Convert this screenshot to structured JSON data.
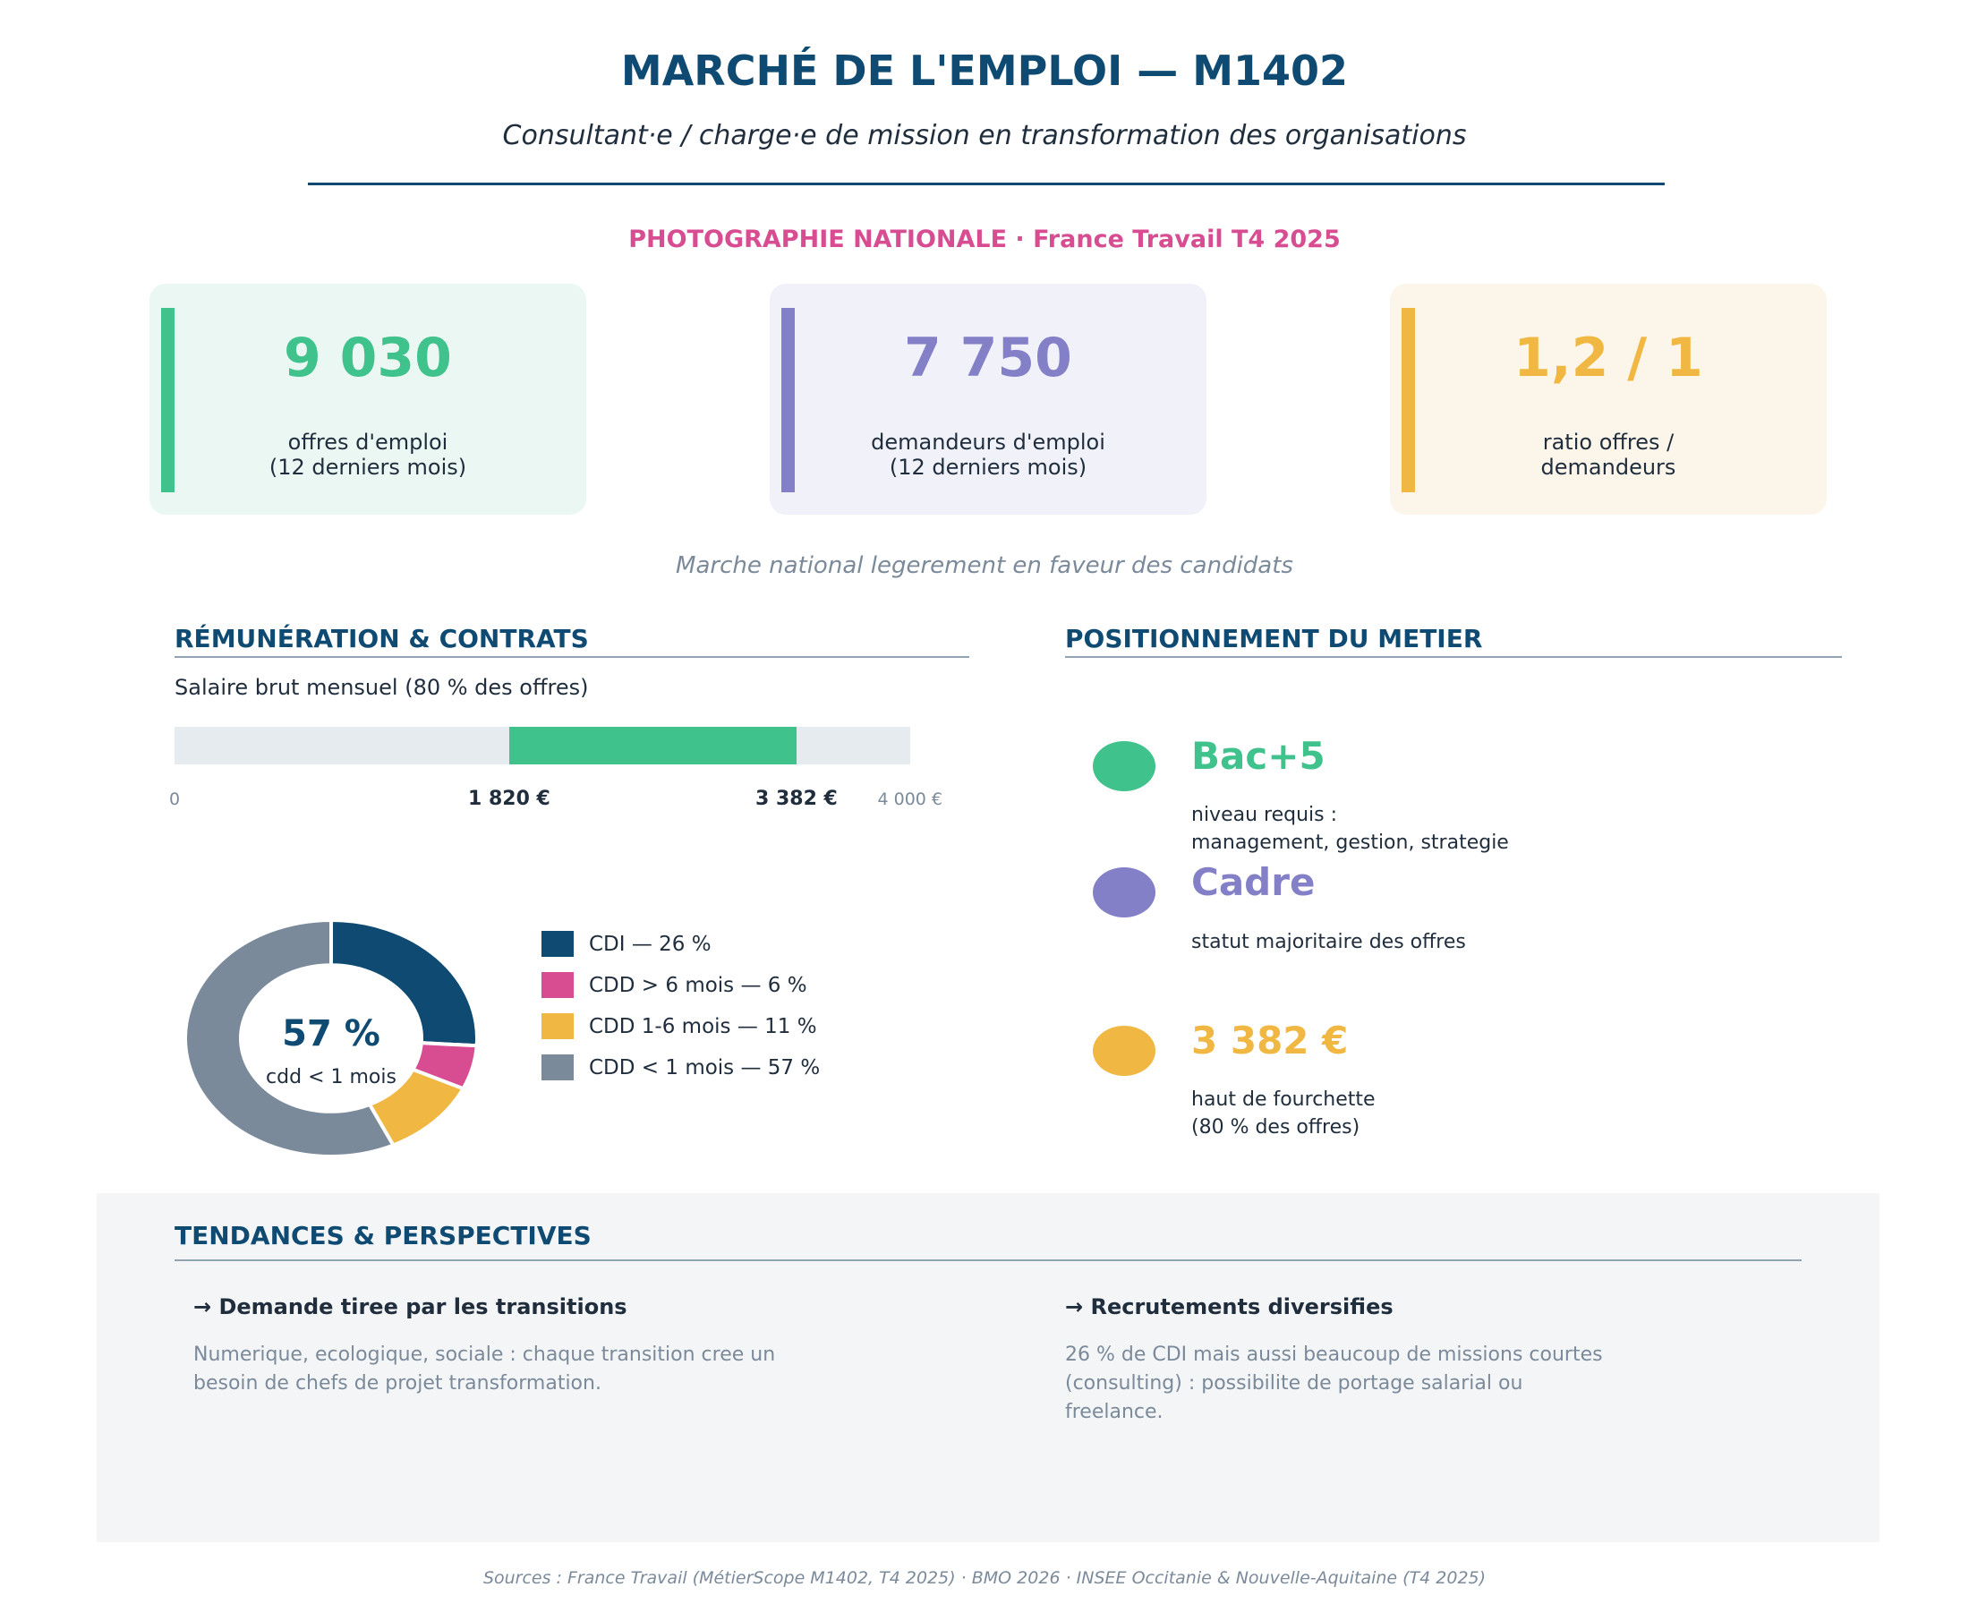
{
  "header": {
    "title": "MARCHÉ DE L'EMPLOI — M1402",
    "subtitle": "Consultant·e / charge·e de mission en transformation des organisations",
    "section_label": "PHOTOGRAPHIE NATIONALE  ·  France Travail T4 2025"
  },
  "kpis": [
    {
      "value": "9 030",
      "label_line1": "offres d'emploi",
      "label_line2": "(12 derniers mois)",
      "color": "#3fc28c",
      "bg": "#ebf7f2"
    },
    {
      "value": "7 750",
      "label_line1": "demandeurs d'emploi",
      "label_line2": "(12 derniers mois)",
      "color": "#8380c8",
      "bg": "#f0f1f9"
    },
    {
      "value": "1,2 / 1",
      "label_line1": "ratio offres /",
      "label_line2": "demandeurs",
      "color": "#f0b842",
      "bg": "#fcf6ea"
    }
  ],
  "national_note": "Marche national legerement en faveur des candidats",
  "remuneration": {
    "title": "RÉMUNÉRATION & CONTRATS",
    "salary_label": "Salaire brut mensuel (80 % des offres)",
    "salary_min_value": 1820,
    "salary_max_value": 3382,
    "scale_max_value": 4000,
    "tick_zero": "0",
    "tick_min": "1 820 €",
    "tick_max": "3 382 €",
    "tick_scale_max": "4 000 €",
    "fill_color": "#3fc28c",
    "donut_center_value": "57 %",
    "donut_center_label": "cdd < 1 mois",
    "contracts": [
      {
        "label": "CDI — 26 %",
        "percent": 26,
        "color": "#0f4a72"
      },
      {
        "label": "CDD > 6 mois — 6 %",
        "percent": 6,
        "color": "#d84d91"
      },
      {
        "label": "CDD 1-6 mois — 11 %",
        "percent": 11,
        "color": "#f0b842"
      },
      {
        "label": "CDD < 1 mois — 57 %",
        "percent": 57,
        "color": "#7b8a9a"
      }
    ]
  },
  "positionnement": {
    "title": "POSITIONNEMENT DU METIER",
    "items": [
      {
        "value": "Bac+5",
        "desc_line1": "niveau requis :",
        "desc_line2": "management, gestion, strategie",
        "color": "#3fc28c"
      },
      {
        "value": "Cadre",
        "desc_line1": "statut majoritaire des offres",
        "desc_line2": "",
        "color": "#8380c8"
      },
      {
        "value": "3 382 €",
        "desc_line1": "haut de fourchette",
        "desc_line2": "(80 % des offres)",
        "color": "#f0b842"
      }
    ]
  },
  "tendances": {
    "title": "TENDANCES & PERSPECTIVES",
    "items": [
      {
        "heading": "→ Demande tiree par les transitions",
        "text_line1": "Numerique, ecologique, sociale : chaque transition cree un",
        "text_line2": "besoin de chefs de projet transformation.",
        "text_line3": ""
      },
      {
        "heading": "→ Recrutements diversifies",
        "text_line1": "26 % de CDI mais aussi beaucoup de missions courtes",
        "text_line2": "(consulting) : possibilite de portage salarial ou",
        "text_line3": "freelance."
      }
    ]
  },
  "sources": "Sources : France Travail (MétierScope M1402, T4 2025) · BMO 2026 · INSEE Occitanie & Nouvelle-Aquitaine (T4 2025)"
}
